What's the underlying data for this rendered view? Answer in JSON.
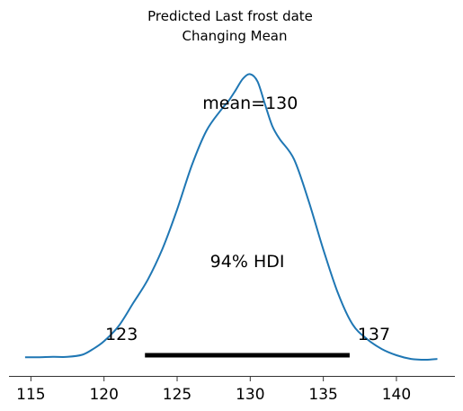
{
  "chart_data": {
    "type": "area",
    "title_lines": [
      "Predicted Last frost date",
      "Changing Mean"
    ],
    "xlabel": "",
    "ylabel": "",
    "xlim": [
      113.5,
      144
    ],
    "ylim": [
      0,
      0.073
    ],
    "xticks": [
      115,
      120,
      125,
      130,
      135,
      140
    ],
    "xtick_labels": [
      "115",
      "120",
      "125",
      "130",
      "135",
      "140"
    ],
    "grid": false,
    "line_color": "#1f77b4",
    "density": {
      "x": [
        114.6,
        115.5,
        116.5,
        117.5,
        118.5,
        119.2,
        120.0,
        121.0,
        122.0,
        123.0,
        124.0,
        125.0,
        126.0,
        127.0,
        128.0,
        128.5,
        129.0,
        129.5,
        130.0,
        130.5,
        131.0,
        131.5,
        132.0,
        133.0,
        134.0,
        135.0,
        136.0,
        137.0,
        138.0,
        139.0,
        140.0,
        141.0,
        142.0,
        142.8
      ],
      "y": [
        0.0006,
        0.0006,
        0.0007,
        0.0007,
        0.0012,
        0.0025,
        0.0045,
        0.0082,
        0.0138,
        0.0195,
        0.027,
        0.0365,
        0.0472,
        0.0556,
        0.0607,
        0.0628,
        0.0655,
        0.0683,
        0.0694,
        0.0676,
        0.0622,
        0.0569,
        0.0537,
        0.0487,
        0.0385,
        0.0268,
        0.0162,
        0.0086,
        0.005,
        0.0026,
        0.0011,
        0.0002,
        0.0,
        0.0002
      ]
    },
    "mean": 130,
    "mean_label": "mean=130",
    "hdi_prob_label": "94% HDI",
    "hdi": [
      122.8,
      136.8
    ],
    "hdi_low_label": "123",
    "hdi_high_label": "137"
  }
}
